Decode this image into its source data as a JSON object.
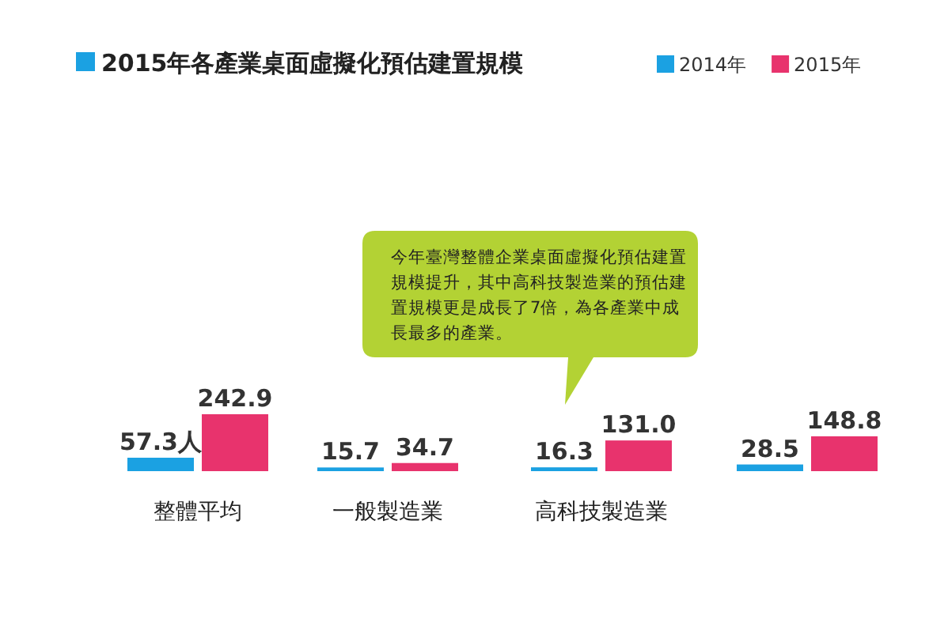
{
  "chart_data": {
    "type": "bar",
    "title": "2015年各產業桌面虛擬化預估建置規模",
    "categories": [
      "整體平均",
      "一般製造業",
      "高科技製造業",
      null
    ],
    "series": [
      {
        "name": "2014年",
        "color": "#1ba1e2",
        "values": [
          57.3,
          15.7,
          16.3,
          28.5
        ],
        "value_labels": [
          "57.3人",
          "15.7",
          "16.3",
          "28.5"
        ]
      },
      {
        "name": "2015年",
        "color": "#e8336d",
        "values": [
          242.9,
          34.7,
          131.0,
          148.8
        ],
        "value_labels": [
          "242.9",
          "34.7",
          "131.0",
          "148.8"
        ]
      }
    ],
    "legend": "top right",
    "annotations": [
      "今年臺灣整體企業桌面虛擬化預估建置規模提升，其中高科技製造業的預估建置規模更是成長了7倍，為各產業中成長最多的產業。"
    ]
  }
}
